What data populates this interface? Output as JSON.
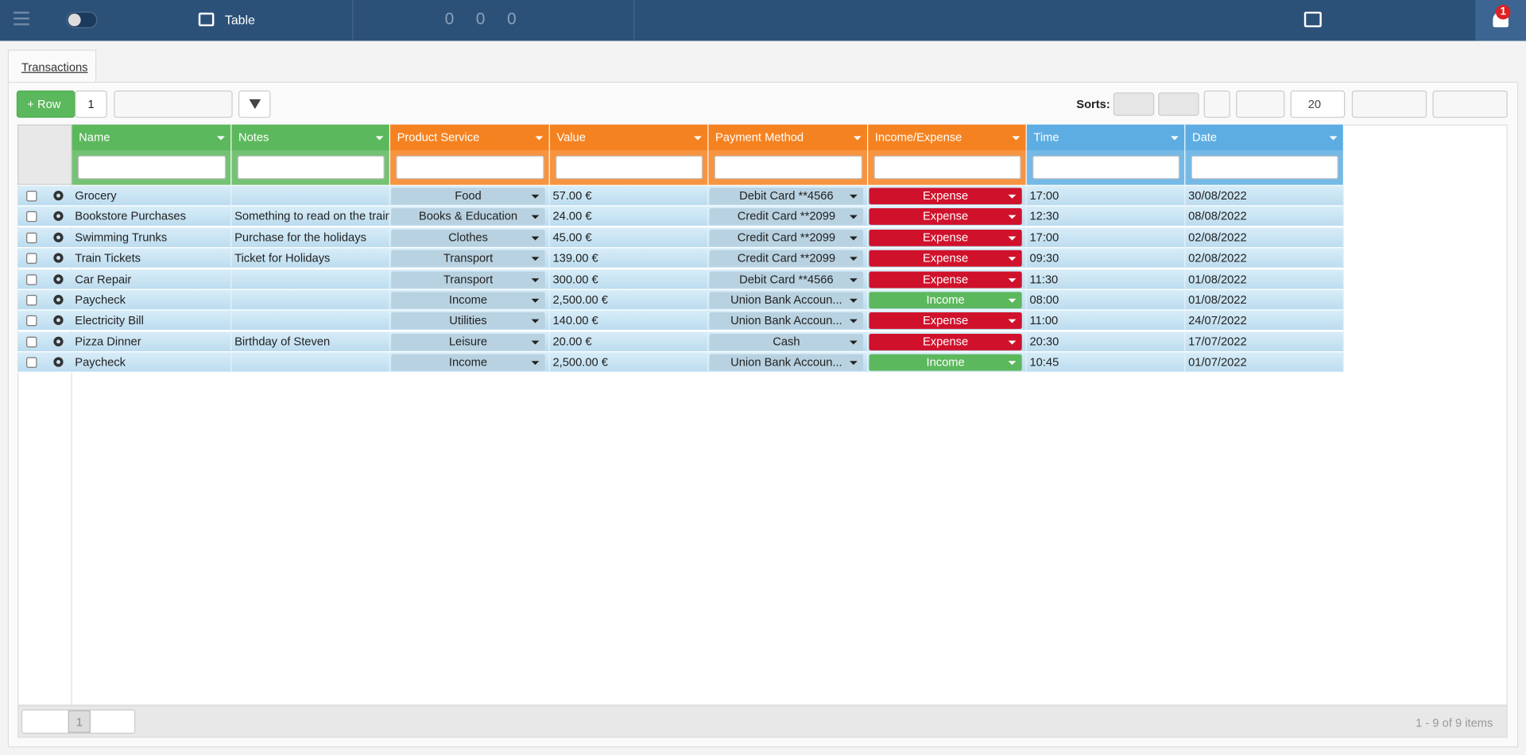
{
  "toolbar": {
    "title": "Table",
    "counters": [
      "0",
      "0",
      "0"
    ],
    "badge": "1"
  },
  "tab": "Transactions",
  "actions": {
    "add": "Row",
    "count": "1",
    "sorts": "Sorts:",
    "page_size": "20"
  },
  "table": {
    "columns": [
      "Name",
      "Notes",
      "Product Service",
      "Value",
      "Payment Method",
      "Income/Expense",
      "Time",
      "Date"
    ],
    "rows": [
      [
        "Grocery",
        "",
        "Food",
        "57.00 €",
        "Debit Card **4566",
        "Expense",
        "17:00",
        "30/08/2022"
      ],
      [
        "Bookstore Purchases",
        "Something to read on the train",
        "Books & Education",
        "24.00 €",
        "Credit Card **2099",
        "Expense",
        "12:30",
        "08/08/2022"
      ],
      [
        "Swimming Trunks",
        "Purchase for the holidays",
        "Clothes",
        "45.00 €",
        "Credit Card **2099",
        "Expense",
        "17:00",
        "02/08/2022"
      ],
      [
        "Train Tickets",
        "Ticket for Holidays",
        "Transport",
        "139.00 €",
        "Credit Card **2099",
        "Expense",
        "09:30",
        "02/08/2022"
      ],
      [
        "Car Repair",
        "",
        "Transport",
        "300.00 €",
        "Debit Card **4566",
        "Expense",
        "11:30",
        "01/08/2022"
      ],
      [
        "Paycheck",
        "",
        "Income",
        "2,500.00 €",
        "Union Bank Accoun...",
        "Income",
        "08:00",
        "01/08/2022"
      ],
      [
        "Electricity Bill",
        "",
        "Utilities",
        "140.00 €",
        "Union Bank Accoun...",
        "Expense",
        "11:00",
        "24/07/2022"
      ],
      [
        "Pizza Dinner",
        "Birthday of Steven",
        "Leisure",
        "20.00 €",
        "Cash",
        "Expense",
        "20:30",
        "17/07/2022"
      ],
      [
        "Paycheck",
        "",
        "Income",
        "2,500.00 €",
        "Union Bank Accoun...",
        "Income",
        "10:45",
        "01/07/2022"
      ]
    ]
  },
  "pager": {
    "page": "1",
    "info": "1 - 9 of 9 items"
  }
}
